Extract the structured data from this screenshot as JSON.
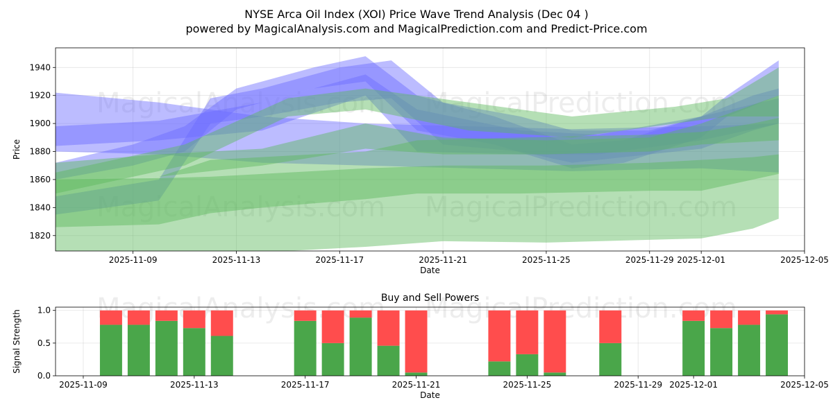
{
  "title_line1": "NYSE Arca Oil Index (XOI) Price Wave Trend Analysis (Dec 04 )",
  "title_line2": "powered by MagicalAnalysis.com and MagicalPrediction.com and Predict-Price.com",
  "watermarks": [
    "MagicalAnalysis.com",
    "MagicalPrediction.com"
  ],
  "colors": {
    "blue": "#6a6aff",
    "green": "#5cb85c",
    "buy": "#4aa64a",
    "sell": "#ff4d4d"
  },
  "chart_data": [
    {
      "type": "area",
      "name": "price-wave-trend",
      "xlabel": "Date",
      "ylabel": "Price",
      "xlim": [
        "2025-11-06",
        "2025-12-05"
      ],
      "ylim": [
        1809,
        1954
      ],
      "x_ticks": [
        "2025-11-09",
        "2025-11-13",
        "2025-11-17",
        "2025-11-21",
        "2025-11-25",
        "2025-11-29",
        "2025-12-01",
        "2025-12-05"
      ],
      "y_ticks": [
        1820,
        1840,
        1860,
        1880,
        1900,
        1920,
        1940
      ],
      "grid": true,
      "series": [
        {
          "name": "blue-wave-1",
          "color": "blue",
          "x": [
            "2025-11-06",
            "2025-11-10",
            "2025-11-14",
            "2025-11-18",
            "2025-11-22",
            "2025-11-26",
            "2025-12-01",
            "2025-12-04"
          ],
          "lower": [
            1880,
            1878,
            1872,
            1870,
            1868,
            1866,
            1868,
            1865
          ],
          "upper": [
            1922,
            1915,
            1905,
            1900,
            1898,
            1896,
            1898,
            1900
          ]
        },
        {
          "name": "blue-wave-2",
          "color": "blue",
          "x": [
            "2025-11-06",
            "2025-11-10",
            "2025-11-12",
            "2025-11-14",
            "2025-11-17",
            "2025-11-19",
            "2025-11-21",
            "2025-11-24",
            "2025-11-26",
            "2025-11-29",
            "2025-12-01",
            "2025-12-03",
            "2025-12-04"
          ],
          "lower": [
            1835,
            1845,
            1900,
            1905,
            1915,
            1918,
            1885,
            1880,
            1872,
            1878,
            1882,
            1895,
            1900
          ],
          "upper": [
            1848,
            1860,
            1918,
            1925,
            1940,
            1945,
            1915,
            1905,
            1895,
            1895,
            1905,
            1920,
            1925
          ]
        },
        {
          "name": "blue-wave-3",
          "color": "blue",
          "x": [
            "2025-11-06",
            "2025-11-09",
            "2025-11-11",
            "2025-11-13",
            "2025-11-16",
            "2025-11-18",
            "2025-11-20",
            "2025-11-23",
            "2025-11-26",
            "2025-11-28",
            "2025-12-01",
            "2025-12-02",
            "2025-12-04"
          ],
          "lower": [
            1860,
            1870,
            1880,
            1910,
            1925,
            1930,
            1895,
            1885,
            1868,
            1872,
            1890,
            1905,
            1920
          ],
          "upper": [
            1872,
            1885,
            1898,
            1925,
            1940,
            1948,
            1920,
            1905,
            1885,
            1888,
            1905,
            1920,
            1945
          ]
        },
        {
          "name": "blue-wave-4",
          "color": "blue",
          "x": [
            "2025-11-06",
            "2025-11-10",
            "2025-11-14",
            "2025-11-18",
            "2025-11-20",
            "2025-11-24",
            "2025-11-27",
            "2025-12-01",
            "2025-12-04"
          ],
          "lower": [
            1884,
            1888,
            1895,
            1920,
            1880,
            1878,
            1878,
            1888,
            1900
          ],
          "upper": [
            1898,
            1902,
            1915,
            1935,
            1910,
            1895,
            1892,
            1905,
            1918
          ]
        },
        {
          "name": "green-wave-1",
          "color": "green",
          "x": [
            "2025-11-06",
            "2025-11-10",
            "2025-11-12",
            "2025-11-14",
            "2025-11-18",
            "2025-11-21",
            "2025-11-25",
            "2025-11-29",
            "2025-12-01",
            "2025-12-03",
            "2025-12-04"
          ],
          "lower": [
            1808,
            1808,
            1808,
            1808,
            1812,
            1816,
            1815,
            1817,
            1818,
            1825,
            1832
          ],
          "upper": [
            1860,
            1861,
            1862,
            1864,
            1868,
            1870,
            1870,
            1872,
            1874,
            1876,
            1878
          ]
        },
        {
          "name": "green-wave-2",
          "color": "green",
          "x": [
            "2025-11-06",
            "2025-11-10",
            "2025-11-12",
            "2025-11-14",
            "2025-11-18",
            "2025-11-20",
            "2025-11-24",
            "2025-11-29",
            "2025-12-01",
            "2025-12-03",
            "2025-12-04"
          ],
          "lower": [
            1826,
            1828,
            1836,
            1840,
            1846,
            1850,
            1850,
            1852,
            1852,
            1860,
            1864
          ],
          "upper": [
            1860,
            1862,
            1874,
            1876,
            1880,
            1888,
            1890,
            1892,
            1894,
            1900,
            1904
          ]
        },
        {
          "name": "green-wave-3",
          "color": "green",
          "x": [
            "2025-11-06",
            "2025-11-10",
            "2025-11-14",
            "2025-11-18",
            "2025-11-21",
            "2025-11-25",
            "2025-11-29",
            "2025-12-01",
            "2025-12-04"
          ],
          "lower": [
            1860,
            1862,
            1870,
            1882,
            1878,
            1878,
            1880,
            1885,
            1888
          ],
          "upper": [
            1872,
            1878,
            1882,
            1900,
            1890,
            1888,
            1890,
            1900,
            1920
          ]
        },
        {
          "name": "green-wave-4",
          "color": "green",
          "x": [
            "2025-11-06",
            "2025-11-11",
            "2025-11-15",
            "2025-11-18",
            "2025-11-22",
            "2025-11-26",
            "2025-11-30",
            "2025-12-02",
            "2025-12-04"
          ],
          "lower": [
            1850,
            1870,
            1905,
            1910,
            1895,
            1890,
            1900,
            1905,
            1905
          ],
          "upper": [
            1865,
            1885,
            1918,
            1925,
            1915,
            1905,
            1912,
            1918,
            1940
          ]
        }
      ]
    },
    {
      "type": "bar",
      "name": "buy-sell-powers",
      "title": "Buy and Sell Powers",
      "xlabel": "Date",
      "ylabel": "Signal Strength",
      "xlim": [
        "2025-11-08",
        "2025-12-05"
      ],
      "ylim": [
        0,
        1.05
      ],
      "x_ticks": [
        "2025-11-09",
        "2025-11-13",
        "2025-11-17",
        "2025-11-21",
        "2025-11-25",
        "2025-11-29",
        "2025-12-01",
        "2025-12-05"
      ],
      "y_ticks": [
        0.0,
        0.5,
        1.0
      ],
      "grid": true,
      "series": [
        {
          "name": "Buy",
          "color": "buy"
        },
        {
          "name": "Sell",
          "color": "sell"
        }
      ],
      "bars": [
        {
          "date": "2025-11-10",
          "buy": 0.78
        },
        {
          "date": "2025-11-11",
          "buy": 0.78
        },
        {
          "date": "2025-11-12",
          "buy": 0.84
        },
        {
          "date": "2025-11-13",
          "buy": 0.73
        },
        {
          "date": "2025-11-14",
          "buy": 0.61
        },
        {
          "date": "2025-11-17",
          "buy": 0.84
        },
        {
          "date": "2025-11-18",
          "buy": 0.5
        },
        {
          "date": "2025-11-19",
          "buy": 0.89
        },
        {
          "date": "2025-11-20",
          "buy": 0.46
        },
        {
          "date": "2025-11-21",
          "buy": 0.05
        },
        {
          "date": "2025-11-24",
          "buy": 0.22
        },
        {
          "date": "2025-11-25",
          "buy": 0.33
        },
        {
          "date": "2025-11-26",
          "buy": 0.05
        },
        {
          "date": "2025-11-28",
          "buy": 0.5
        },
        {
          "date": "2025-12-01",
          "buy": 0.84
        },
        {
          "date": "2025-12-02",
          "buy": 0.73
        },
        {
          "date": "2025-12-03",
          "buy": 0.78
        },
        {
          "date": "2025-12-04",
          "buy": 0.94
        }
      ]
    }
  ]
}
